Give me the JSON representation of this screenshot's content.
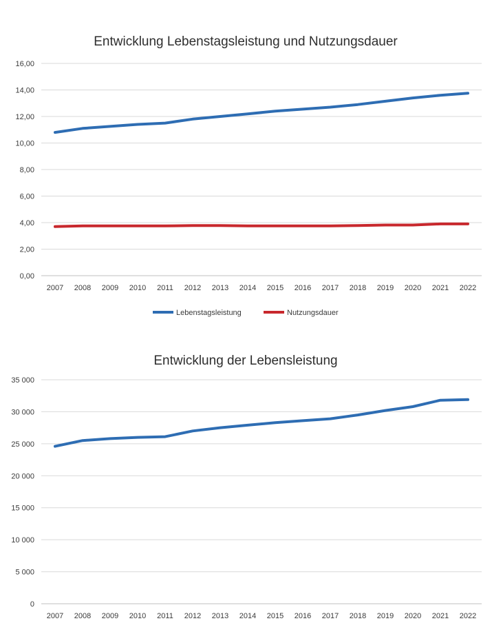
{
  "chart_data": [
    {
      "type": "line",
      "title": "Entwicklung Lebenstagsleistung und Nutzungsdauer",
      "xlabel": "",
      "ylabel": "",
      "ylim": [
        0,
        16
      ],
      "y_ticks": [
        "0,00",
        "2,00",
        "4,00",
        "6,00",
        "8,00",
        "10,00",
        "12,00",
        "14,00",
        "16,00"
      ],
      "categories": [
        "2007",
        "2008",
        "2009",
        "2010",
        "2011",
        "2012",
        "2013",
        "2014",
        "2015",
        "2016",
        "2017",
        "2018",
        "2019",
        "2020",
        "2021",
        "2022"
      ],
      "grid": true,
      "legend_position": "bottom",
      "series": [
        {
          "name": "Lebenstagsleistung",
          "color": "#2e6db3",
          "values": [
            10.8,
            11.1,
            11.25,
            11.4,
            11.5,
            11.8,
            12.0,
            12.2,
            12.4,
            12.55,
            12.7,
            12.9,
            13.15,
            13.4,
            13.6,
            13.75
          ]
        },
        {
          "name": "Nutzungsdauer",
          "color": "#c8282d",
          "values": [
            3.7,
            3.75,
            3.75,
            3.75,
            3.75,
            3.78,
            3.78,
            3.75,
            3.75,
            3.75,
            3.75,
            3.78,
            3.82,
            3.82,
            3.9,
            3.9
          ]
        }
      ]
    },
    {
      "type": "line",
      "title": "Entwicklung der Lebensleistung",
      "xlabel": "",
      "ylabel": "",
      "ylim": [
        0,
        35000
      ],
      "y_ticks": [
        "0",
        "5 000",
        "10 000",
        "15 000",
        "20 000",
        "25 000",
        "30 000",
        "35 000"
      ],
      "categories": [
        "2007",
        "2008",
        "2009",
        "2010",
        "2011",
        "2012",
        "2013",
        "2014",
        "2015",
        "2016",
        "2017",
        "2018",
        "2019",
        "2020",
        "2021",
        "2022"
      ],
      "grid": true,
      "legend_position": "none",
      "series": [
        {
          "color": "#2e6db3",
          "values": [
            24600,
            25500,
            25800,
            26000,
            26100,
            27000,
            27500,
            27900,
            28300,
            28600,
            28900,
            29500,
            30200,
            30800,
            31800,
            31900
          ]
        }
      ]
    }
  ]
}
